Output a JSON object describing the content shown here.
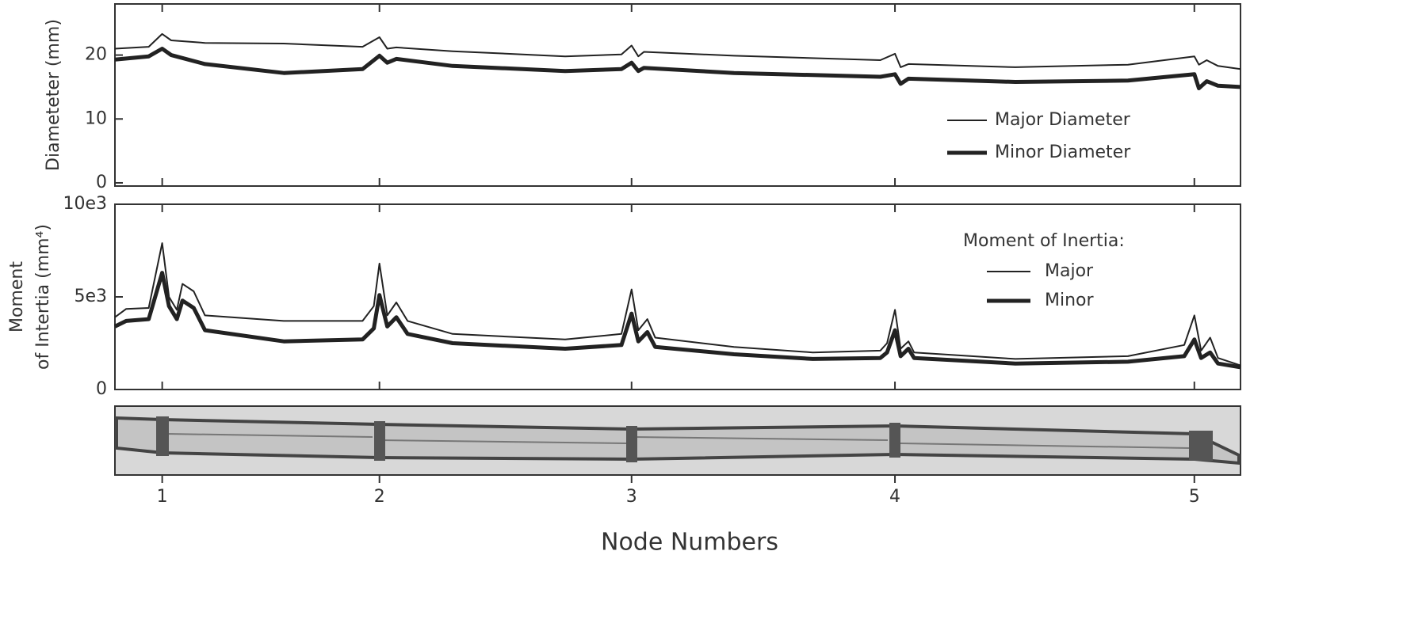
{
  "xaxis": {
    "xlim": [
      0,
      100
    ],
    "label": "Node Numbers",
    "xticks": [
      {
        "value": 4.2,
        "label": "1"
      },
      {
        "value": 23.5,
        "label": "2"
      },
      {
        "value": 45.9,
        "label": "3"
      },
      {
        "value": 69.3,
        "label": "4"
      },
      {
        "value": 95.9,
        "label": "5"
      }
    ]
  },
  "chart_data": [
    {
      "type": "line",
      "ylabel": [
        "Diameteter (mm)"
      ],
      "ylim": [
        -0.5,
        28
      ],
      "yticks": [
        0,
        10,
        20
      ],
      "legend": "right",
      "x": [
        0,
        3,
        4.2,
        5,
        8,
        15,
        22,
        23.5,
        24.2,
        25,
        30,
        40,
        45,
        45.9,
        46.5,
        47,
        55,
        68,
        69.3,
        69.8,
        70.5,
        80,
        90,
        95.9,
        96.3,
        97,
        98,
        100
      ],
      "series": [
        {
          "name": "Major Diameter",
          "color": "#222",
          "width": 2,
          "values": [
            21,
            21.3,
            23.3,
            22.3,
            21.9,
            21.8,
            21.3,
            22.8,
            21,
            21.2,
            20.6,
            19.8,
            20.1,
            21.5,
            19.8,
            20.5,
            19.9,
            19.2,
            20.2,
            18.1,
            18.6,
            18.1,
            18.5,
            19.8,
            18.5,
            19.2,
            18.3,
            17.8
          ]
        },
        {
          "name": "Minor Diameter",
          "color": "#222",
          "width": 5,
          "values": [
            19.3,
            19.8,
            21,
            20,
            18.6,
            17.2,
            17.8,
            19.9,
            18.8,
            19.4,
            18.3,
            17.5,
            17.8,
            18.8,
            17.5,
            18,
            17.2,
            16.6,
            17,
            15.5,
            16.3,
            15.8,
            16,
            17,
            14.8,
            15.9,
            15.2,
            15
          ]
        }
      ]
    },
    {
      "type": "line",
      "ylabel": [
        "Moment",
        "of Intertia  (mm⁴)"
      ],
      "ylim": [
        0,
        10000
      ],
      "yticks": [
        0,
        {
          "value": 5000,
          "label": "5e3"
        },
        {
          "value": 10000,
          "label": "10e3"
        }
      ],
      "legend": "right",
      "legend_title": "Moment of Inertia:",
      "x": [
        0,
        1,
        3,
        4.2,
        4.8,
        5.5,
        6,
        7,
        8,
        15,
        22,
        23,
        23.5,
        24.2,
        25,
        26,
        30,
        40,
        45,
        45.9,
        46.5,
        47.3,
        48,
        55,
        62,
        68,
        68.6,
        69.3,
        69.8,
        70.5,
        71,
        80,
        90,
        95,
        95.9,
        96.5,
        97.3,
        98,
        100
      ],
      "series": [
        {
          "name": "Major",
          "color": "#222",
          "width": 2,
          "values": [
            3900,
            4350,
            4400,
            7900,
            5000,
            4300,
            5700,
            5300,
            4000,
            3700,
            3700,
            4500,
            6800,
            4000,
            4700,
            3700,
            3000,
            2700,
            3000,
            5400,
            3200,
            3800,
            2800,
            2300,
            2000,
            2100,
            2500,
            4300,
            2200,
            2600,
            2000,
            1650,
            1800,
            2400,
            4000,
            2100,
            2800,
            1700,
            1300
          ]
        },
        {
          "name": "Minor",
          "color": "#222",
          "width": 5,
          "values": [
            3400,
            3700,
            3800,
            6300,
            4500,
            3800,
            4800,
            4400,
            3200,
            2600,
            2700,
            3300,
            5100,
            3400,
            3900,
            3000,
            2500,
            2200,
            2400,
            4100,
            2600,
            3100,
            2300,
            1900,
            1650,
            1700,
            2000,
            3200,
            1800,
            2200,
            1700,
            1400,
            1500,
            1800,
            2700,
            1700,
            2000,
            1400,
            1200
          ]
        }
      ]
    }
  ]
}
